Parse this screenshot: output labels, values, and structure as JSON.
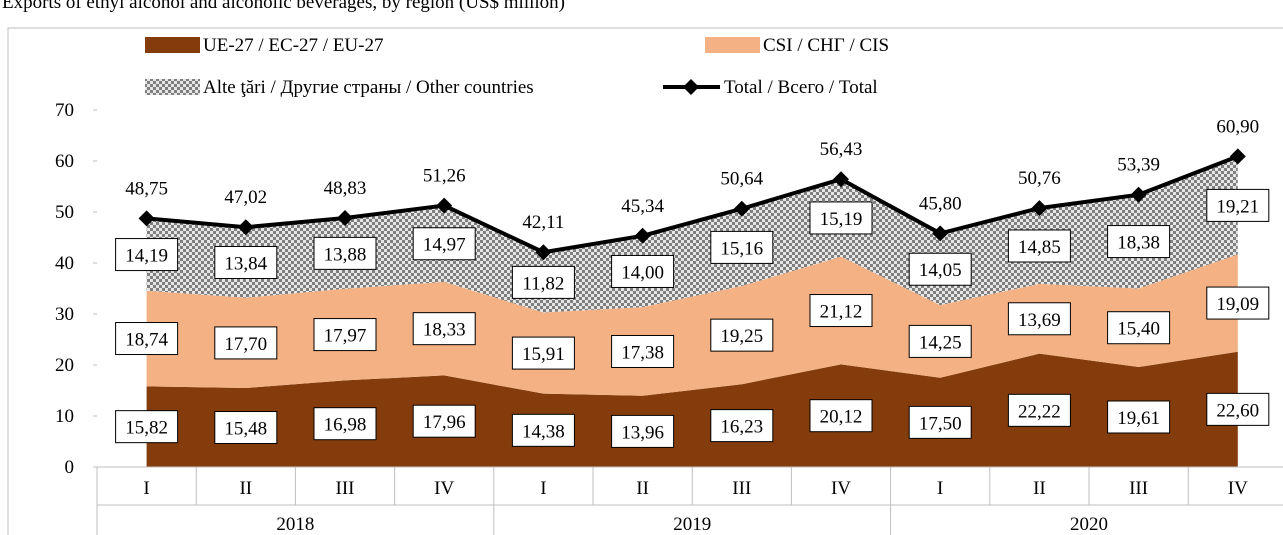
{
  "chart_data": {
    "type": "stacked-area",
    "title": "Exports of ethyl alcohol and alcoholic beverages, by region (US$ million)",
    "categories": [
      "I",
      "II",
      "III",
      "IV",
      "I",
      "II",
      "III",
      "IV",
      "I",
      "II",
      "III",
      "IV"
    ],
    "years": [
      "2018",
      "2019",
      "2020"
    ],
    "ylim": [
      0,
      70
    ],
    "yticks": [
      0,
      10,
      20,
      30,
      40,
      50,
      60,
      70
    ],
    "series": [
      {
        "name": "UE-27 / EC-27 / EU-27",
        "color": "#843c0c",
        "values": [
          15.82,
          15.48,
          16.98,
          17.96,
          14.38,
          13.96,
          16.23,
          20.12,
          17.5,
          22.22,
          19.61,
          22.6
        ],
        "value_labels": [
          "15,82",
          "15,48",
          "16,98",
          "17,96",
          "14,38",
          "13,96",
          "16,23",
          "20,12",
          "17,50",
          "22,22",
          "19,61",
          "22,60"
        ]
      },
      {
        "name": "CSI / СНГ / CIS",
        "color": "#f4b183",
        "values": [
          18.74,
          17.7,
          17.97,
          18.33,
          15.91,
          17.38,
          19.25,
          21.12,
          14.25,
          13.69,
          15.4,
          19.09
        ],
        "value_labels": [
          "18,74",
          "17,70",
          "17,97",
          "18,33",
          "15,91",
          "17,38",
          "19,25",
          "21,12",
          "14,25",
          "13,69",
          "15,40",
          "19,09"
        ]
      },
      {
        "name": "Alte ţări / Другие страны / Other countries",
        "color": "#a6a6a6",
        "values": [
          14.19,
          13.84,
          13.88,
          14.97,
          11.82,
          14.0,
          15.16,
          15.19,
          14.05,
          14.85,
          18.38,
          19.21
        ],
        "value_labels": [
          "14,19",
          "13,84",
          "13,88",
          "14,97",
          "11,82",
          "14,00",
          "15,16",
          "15,19",
          "14,05",
          "14,85",
          "18,38",
          "19,21"
        ]
      }
    ],
    "total": {
      "name": "Total / Всего / Total",
      "color": "#000000",
      "values": [
        48.75,
        47.02,
        48.83,
        51.26,
        42.11,
        45.34,
        50.64,
        56.43,
        45.8,
        50.76,
        53.39,
        60.9
      ],
      "value_labels": [
        "48,75",
        "47,02",
        "48,83",
        "51,26",
        "42,11",
        "45,34",
        "50,64",
        "56,43",
        "45,80",
        "50,76",
        "53,39",
        "60,90"
      ]
    }
  }
}
